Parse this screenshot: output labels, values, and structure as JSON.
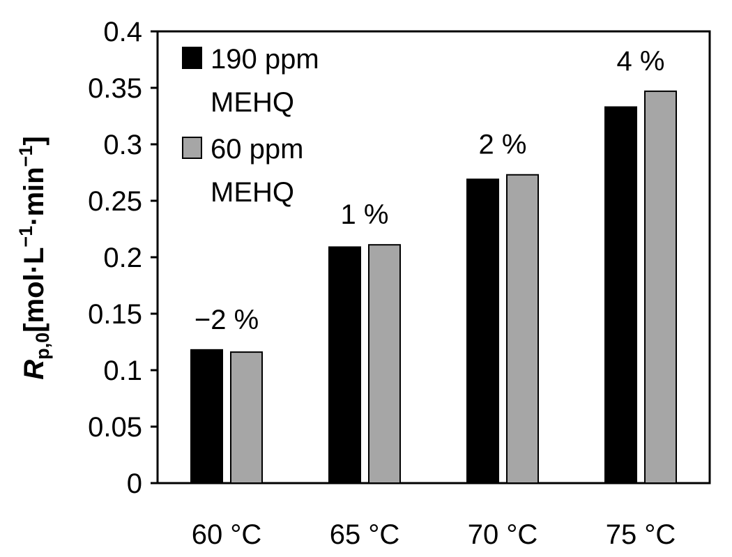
{
  "chart_data": {
    "type": "bar",
    "ylabel_var": "R",
    "ylabel_sub": "p,0",
    "ylabel_unit_parts": [
      "[mol·L",
      "−1",
      "·min",
      "−1",
      "]"
    ],
    "categories": [
      "60 °C",
      "65 °C",
      "70 °C",
      "75 °C"
    ],
    "series": [
      {
        "name": "190 ppm MEHQ",
        "legend_lines": [
          "190 ppm",
          "MEHQ"
        ],
        "color": "#000000",
        "values": [
          0.118,
          0.209,
          0.269,
          0.333
        ]
      },
      {
        "name": "60 ppm MEHQ",
        "legend_lines": [
          "60 ppm",
          "MEHQ"
        ],
        "color": "#a6a6a6",
        "values": [
          0.116,
          0.211,
          0.273,
          0.347
        ]
      }
    ],
    "annotations": [
      "−2 %",
      "1 %",
      "2 %",
      "4 %"
    ],
    "yticks": [
      "0",
      "0.05",
      "0.1",
      "0.15",
      "0.2",
      "0.25",
      "0.3",
      "0.35",
      "0.4"
    ],
    "ylim": [
      0,
      0.4
    ],
    "legend_position": "top-left"
  }
}
